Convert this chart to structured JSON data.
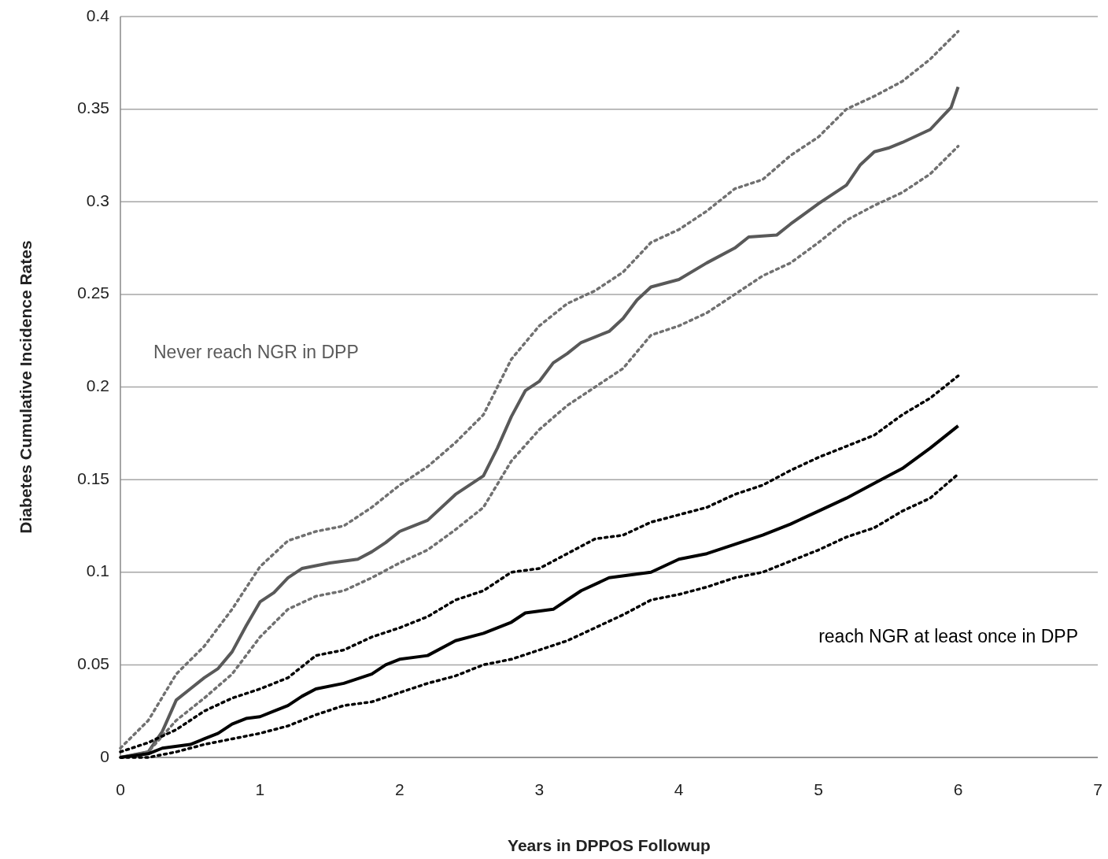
{
  "chart_data": {
    "type": "line",
    "xlabel": "Years in DPPOS Followup",
    "ylabel": "Diabetes Cumulative Incidence Rates",
    "xlim": [
      0,
      7
    ],
    "ylim": [
      0,
      0.4
    ],
    "xticks": [
      0,
      1,
      2,
      3,
      4,
      5,
      6,
      7
    ],
    "yticks": [
      0,
      0.05,
      0.1,
      0.15,
      0.2,
      0.25,
      0.3,
      0.35,
      0.4
    ],
    "grid": "y",
    "marker": "none",
    "series": [
      {
        "name": "Never reach NGR in DPP",
        "color": "#595959",
        "line_style": "solid",
        "x": [
          0,
          0.2,
          0.3,
          0.4,
          0.5,
          0.6,
          0.7,
          0.8,
          0.9,
          1.0,
          1.1,
          1.2,
          1.3,
          1.5,
          1.7,
          1.8,
          1.9,
          2.0,
          2.2,
          2.4,
          2.6,
          2.7,
          2.8,
          2.9,
          3.0,
          3.1,
          3.2,
          3.3,
          3.5,
          3.6,
          3.7,
          3.8,
          4.0,
          4.2,
          4.4,
          4.5,
          4.7,
          4.8,
          5.0,
          5.2,
          5.3,
          5.4,
          5.5,
          5.6,
          5.8,
          5.9,
          5.95,
          6.0
        ],
        "values": [
          0,
          0.003,
          0.014,
          0.031,
          0.037,
          0.043,
          0.048,
          0.057,
          0.071,
          0.084,
          0.089,
          0.097,
          0.102,
          0.105,
          0.107,
          0.111,
          0.116,
          0.122,
          0.128,
          0.142,
          0.152,
          0.167,
          0.184,
          0.198,
          0.203,
          0.213,
          0.218,
          0.224,
          0.23,
          0.237,
          0.247,
          0.254,
          0.258,
          0.267,
          0.275,
          0.281,
          0.282,
          0.288,
          0.299,
          0.309,
          0.32,
          0.327,
          0.329,
          0.332,
          0.339,
          0.347,
          0.351,
          0.362
        ]
      },
      {
        "color": "#707070",
        "line_style": "dotted",
        "x": [
          0,
          0.2,
          0.4,
          0.6,
          0.8,
          1.0,
          1.2,
          1.4,
          1.6,
          1.8,
          2.0,
          2.2,
          2.4,
          2.6,
          2.8,
          3.0,
          3.2,
          3.4,
          3.6,
          3.8,
          4.0,
          4.2,
          4.4,
          4.6,
          4.8,
          5.0,
          5.2,
          5.4,
          5.6,
          5.8,
          6.0
        ],
        "values": [
          0.005,
          0.02,
          0.045,
          0.06,
          0.08,
          0.103,
          0.117,
          0.122,
          0.125,
          0.135,
          0.147,
          0.157,
          0.17,
          0.185,
          0.215,
          0.233,
          0.245,
          0.252,
          0.262,
          0.278,
          0.285,
          0.295,
          0.307,
          0.312,
          0.325,
          0.335,
          0.35,
          0.357,
          0.365,
          0.377,
          0.392
        ]
      },
      {
        "color": "#707070",
        "line_style": "dotted",
        "x": [
          0,
          0.2,
          0.4,
          0.6,
          0.8,
          1.0,
          1.2,
          1.4,
          1.6,
          1.8,
          2.0,
          2.2,
          2.4,
          2.6,
          2.8,
          3.0,
          3.2,
          3.4,
          3.6,
          3.8,
          4.0,
          4.2,
          4.4,
          4.6,
          4.8,
          5.0,
          5.2,
          5.4,
          5.6,
          5.8,
          6.0
        ],
        "values": [
          0,
          0.003,
          0.02,
          0.032,
          0.045,
          0.065,
          0.08,
          0.087,
          0.09,
          0.097,
          0.105,
          0.112,
          0.123,
          0.135,
          0.16,
          0.177,
          0.19,
          0.2,
          0.21,
          0.228,
          0.233,
          0.24,
          0.25,
          0.26,
          0.267,
          0.278,
          0.29,
          0.298,
          0.305,
          0.315,
          0.33
        ]
      },
      {
        "name": "reach NGR at least once in DPP",
        "color": "#000000",
        "line_style": "solid",
        "x": [
          0,
          0.2,
          0.3,
          0.5,
          0.6,
          0.7,
          0.8,
          0.9,
          1.0,
          1.1,
          1.2,
          1.3,
          1.4,
          1.6,
          1.8,
          1.9,
          2.0,
          2.2,
          2.4,
          2.6,
          2.8,
          2.9,
          3.1,
          3.2,
          3.3,
          3.5,
          3.8,
          4.0,
          4.2,
          4.4,
          4.6,
          4.8,
          5.0,
          5.2,
          5.4,
          5.6,
          5.8,
          6.0
        ],
        "values": [
          0,
          0.002,
          0.005,
          0.007,
          0.01,
          0.013,
          0.018,
          0.021,
          0.022,
          0.025,
          0.028,
          0.033,
          0.037,
          0.04,
          0.045,
          0.05,
          0.053,
          0.055,
          0.063,
          0.067,
          0.073,
          0.078,
          0.08,
          0.085,
          0.09,
          0.097,
          0.1,
          0.107,
          0.11,
          0.115,
          0.12,
          0.126,
          0.133,
          0.14,
          0.148,
          0.156,
          0.167,
          0.179
        ]
      },
      {
        "color": "#000000",
        "line_style": "dotted",
        "x": [
          0,
          0.2,
          0.4,
          0.6,
          0.8,
          1.0,
          1.2,
          1.4,
          1.6,
          1.8,
          2.0,
          2.2,
          2.4,
          2.6,
          2.8,
          3.0,
          3.2,
          3.4,
          3.6,
          3.8,
          4.0,
          4.2,
          4.4,
          4.6,
          4.8,
          5.0,
          5.2,
          5.4,
          5.6,
          5.8,
          6.0
        ],
        "values": [
          0.003,
          0.008,
          0.015,
          0.025,
          0.032,
          0.037,
          0.043,
          0.055,
          0.058,
          0.065,
          0.07,
          0.076,
          0.085,
          0.09,
          0.1,
          0.102,
          0.11,
          0.118,
          0.12,
          0.127,
          0.131,
          0.135,
          0.142,
          0.147,
          0.155,
          0.162,
          0.168,
          0.174,
          0.185,
          0.194,
          0.206
        ]
      },
      {
        "color": "#000000",
        "line_style": "dotted",
        "x": [
          0,
          0.2,
          0.4,
          0.6,
          0.8,
          1.0,
          1.2,
          1.4,
          1.6,
          1.8,
          2.0,
          2.2,
          2.4,
          2.6,
          2.8,
          3.0,
          3.2,
          3.4,
          3.6,
          3.8,
          4.0,
          4.2,
          4.4,
          4.6,
          4.8,
          5.0,
          5.2,
          5.4,
          5.6,
          5.8,
          6.0
        ],
        "values": [
          0,
          0,
          0.003,
          0.007,
          0.01,
          0.013,
          0.017,
          0.023,
          0.028,
          0.03,
          0.035,
          0.04,
          0.044,
          0.05,
          0.053,
          0.058,
          0.063,
          0.07,
          0.077,
          0.085,
          0.088,
          0.092,
          0.097,
          0.1,
          0.106,
          0.112,
          0.119,
          0.124,
          0.133,
          0.14,
          0.153
        ]
      }
    ]
  }
}
